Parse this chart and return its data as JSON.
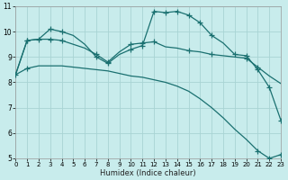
{
  "xlabel": "Humidex (Indice chaleur)",
  "bg_color": "#c8ecec",
  "grid_color": "#a8d4d4",
  "line_color": "#1a7070",
  "xlim": [
    0,
    23
  ],
  "ylim": [
    5,
    11
  ],
  "xtick_labels": [
    "0",
    "1",
    "2",
    "3",
    "4",
    "5",
    "6",
    "7",
    "8",
    "9",
    "10",
    "11",
    "12",
    "13",
    "14",
    "15",
    "16",
    "17",
    "18",
    "19",
    "20",
    "21",
    "22",
    "23"
  ],
  "ytick_labels": [
    "5",
    "6",
    "7",
    "8",
    "9",
    "10",
    "11"
  ],
  "curve_low_x": [
    0,
    1,
    2,
    3,
    4,
    5,
    6,
    7,
    8,
    9,
    10,
    11,
    12,
    13,
    14,
    15,
    16,
    17,
    18,
    19,
    20,
    21,
    22,
    23
  ],
  "curve_low_y": [
    8.3,
    8.55,
    8.65,
    8.65,
    8.65,
    8.6,
    8.55,
    8.5,
    8.45,
    8.35,
    8.25,
    8.2,
    8.1,
    8.0,
    7.85,
    7.65,
    7.35,
    7.0,
    6.6,
    6.15,
    5.75,
    5.3,
    5.0,
    5.15
  ],
  "curve_mid_x": [
    0,
    1,
    2,
    3,
    4,
    5,
    6,
    7,
    8,
    9,
    10,
    11,
    12,
    13,
    14,
    15,
    16,
    17,
    18,
    19,
    20,
    21,
    22,
    23
  ],
  "curve_mid_y": [
    8.3,
    9.65,
    9.7,
    9.7,
    9.65,
    9.5,
    9.35,
    9.1,
    8.8,
    9.2,
    9.5,
    9.55,
    9.6,
    9.4,
    9.35,
    9.25,
    9.2,
    9.1,
    9.05,
    9.0,
    8.95,
    8.6,
    8.25,
    7.95
  ],
  "curve_top_x": [
    0,
    1,
    2,
    3,
    4,
    5,
    6,
    7,
    8,
    9,
    10,
    11,
    12,
    13,
    14,
    15,
    16,
    17,
    18,
    19,
    20,
    21,
    22,
    23
  ],
  "curve_top_y": [
    8.3,
    9.65,
    9.7,
    10.1,
    10.0,
    9.85,
    9.5,
    9.0,
    8.75,
    9.1,
    9.3,
    9.45,
    10.8,
    10.75,
    10.8,
    10.65,
    10.35,
    9.85,
    9.55,
    9.1,
    9.05,
    8.5,
    7.8,
    6.5
  ],
  "markers_top": [
    [
      1,
      9.65
    ],
    [
      2,
      9.7
    ],
    [
      3,
      10.1
    ],
    [
      4,
      10.0
    ],
    [
      7,
      9.0
    ],
    [
      8,
      8.75
    ],
    [
      10,
      9.3
    ],
    [
      11,
      9.45
    ],
    [
      12,
      10.8
    ],
    [
      13,
      10.75
    ],
    [
      14,
      10.8
    ],
    [
      15,
      10.65
    ],
    [
      16,
      10.35
    ],
    [
      17,
      9.85
    ],
    [
      19,
      9.1
    ],
    [
      20,
      9.05
    ],
    [
      21,
      8.5
    ],
    [
      22,
      7.8
    ],
    [
      23,
      6.5
    ]
  ],
  "markers_mid": [
    [
      1,
      9.65
    ],
    [
      3,
      9.7
    ],
    [
      4,
      9.65
    ],
    [
      7,
      9.1
    ],
    [
      8,
      8.8
    ],
    [
      10,
      9.5
    ],
    [
      11,
      9.55
    ],
    [
      12,
      9.6
    ],
    [
      15,
      9.25
    ],
    [
      17,
      9.1
    ],
    [
      20,
      8.95
    ],
    [
      21,
      8.6
    ]
  ],
  "markers_low": [
    [
      0,
      8.3
    ],
    [
      1,
      8.55
    ],
    [
      21,
      5.3
    ],
    [
      22,
      5.0
    ],
    [
      23,
      5.15
    ]
  ]
}
